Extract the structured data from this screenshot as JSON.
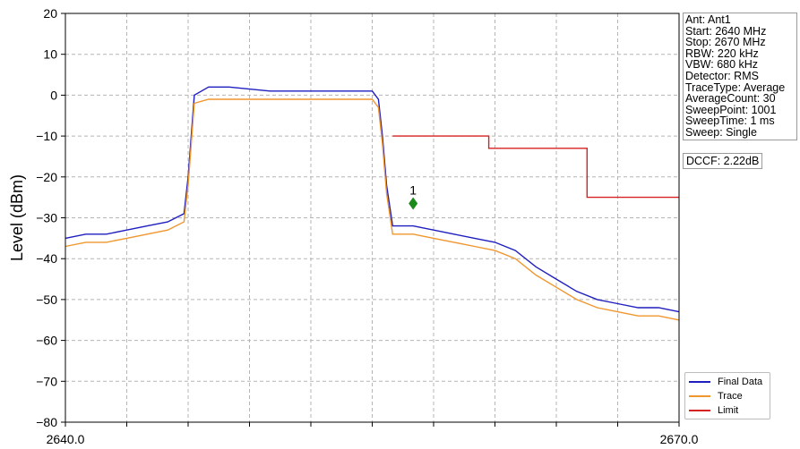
{
  "chart_data": {
    "type": "line",
    "title": "",
    "xlabel": "",
    "ylabel": "Level (dBm)",
    "xlim": [
      2640.0,
      2670.0
    ],
    "ylim": [
      -80,
      20
    ],
    "x_tick_labels": [
      "2640.0",
      "2670.0"
    ],
    "y_ticks": [
      20,
      10,
      0,
      -10,
      -20,
      -30,
      -40,
      -50,
      -60,
      -70,
      -80
    ],
    "grid": true,
    "legend_position": "bottom-right",
    "series": [
      {
        "name": "Final Data",
        "color": "#1f1fbf",
        "x": [
          2640.0,
          2641.0,
          2642.0,
          2643.0,
          2644.0,
          2645.0,
          2645.8,
          2646.0,
          2646.3,
          2647.0,
          2648.0,
          2650.0,
          2652.0,
          2654.0,
          2655.0,
          2655.3,
          2655.5,
          2655.7,
          2656.0,
          2657.0,
          2658.0,
          2659.0,
          2660.0,
          2661.0,
          2662.0,
          2663.0,
          2664.0,
          2665.0,
          2666.0,
          2667.0,
          2668.0,
          2669.0,
          2670.0
        ],
        "y": [
          -35,
          -34,
          -34,
          -33,
          -32,
          -31,
          -29,
          -20,
          0,
          2,
          2,
          1,
          1,
          1,
          1,
          -1,
          -10,
          -22,
          -32,
          -32,
          -33,
          -34,
          -35,
          -36,
          -38,
          -42,
          -45,
          -48,
          -50,
          -51,
          -52,
          -52,
          -53
        ]
      },
      {
        "name": "Trace",
        "color": "#f0962e",
        "x": [
          2640.0,
          2641.0,
          2642.0,
          2643.0,
          2644.0,
          2645.0,
          2645.8,
          2646.0,
          2646.3,
          2647.0,
          2648.0,
          2650.0,
          2652.0,
          2654.0,
          2655.0,
          2655.3,
          2655.5,
          2655.7,
          2656.0,
          2657.0,
          2658.0,
          2659.0,
          2660.0,
          2661.0,
          2662.0,
          2663.0,
          2664.0,
          2665.0,
          2666.0,
          2667.0,
          2668.0,
          2669.0,
          2670.0
        ],
        "y": [
          -37,
          -36,
          -36,
          -35,
          -34,
          -33,
          -31,
          -22,
          -2,
          -1,
          -1,
          -1,
          -1,
          -1,
          -1,
          -3,
          -12,
          -24,
          -34,
          -34,
          -35,
          -36,
          -37,
          -38,
          -40,
          -44,
          -47,
          -50,
          -52,
          -53,
          -54,
          -54,
          -55
        ]
      },
      {
        "name": "Limit",
        "color": "#d62222",
        "x": [
          2656.0,
          2660.7,
          2660.7,
          2665.5,
          2665.5,
          2670.0
        ],
        "y": [
          -10,
          -10,
          -13,
          -13,
          -25,
          -25
        ]
      }
    ],
    "markers": [
      {
        "label": "1",
        "x": 2657.0,
        "y": -26.5,
        "color": "#1a8a1a"
      }
    ]
  },
  "info_panel": {
    "lines": [
      "Ant: Ant1",
      "Start: 2640 MHz",
      "Stop: 2670 MHz",
      "RBW: 220 kHz",
      "VBW: 680 kHz",
      "Detector: RMS",
      "TraceType: Average",
      "AverageCount: 30",
      "SweepPoint: 1001",
      "SweepTime: 1 ms",
      "Sweep: Single"
    ]
  },
  "dccf": "DCCF: 2.22dB"
}
